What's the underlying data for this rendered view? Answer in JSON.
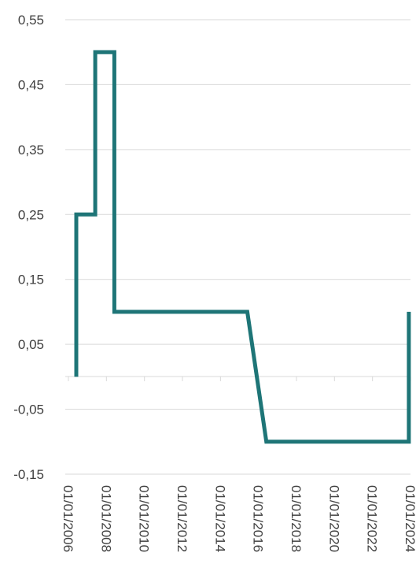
{
  "chart_data": {
    "type": "line",
    "step": true,
    "title": "",
    "xlabel": "",
    "ylabel": "",
    "ylim": [
      -0.15,
      0.55
    ],
    "xlim": [
      "2006-01-01",
      "2024-01-01"
    ],
    "grid": {
      "horizontal": true,
      "vertical": false
    },
    "legend": "none",
    "line_color": "#1E7577",
    "y_ticks": [
      {
        "value": 0.55,
        "label": "0,55"
      },
      {
        "value": 0.45,
        "label": "0,45"
      },
      {
        "value": 0.35,
        "label": "0,35"
      },
      {
        "value": 0.25,
        "label": "0,25"
      },
      {
        "value": 0.15,
        "label": "0,15"
      },
      {
        "value": 0.05,
        "label": "0,05"
      },
      {
        "value": -0.05,
        "label": "-0,05"
      },
      {
        "value": -0.15,
        "label": "-0,15"
      }
    ],
    "x_ticks": [
      {
        "value": "2006-01-01",
        "label": "01/01/2006"
      },
      {
        "value": "2008-01-01",
        "label": "01/01/2008"
      },
      {
        "value": "2010-01-01",
        "label": "01/01/2010"
      },
      {
        "value": "2012-01-01",
        "label": "01/01/2012"
      },
      {
        "value": "2014-01-01",
        "label": "01/01/2014"
      },
      {
        "value": "2016-01-01",
        "label": "01/01/2016"
      },
      {
        "value": "2018-01-01",
        "label": "01/01/2018"
      },
      {
        "value": "2020-01-01",
        "label": "01/01/2020"
      },
      {
        "value": "2022-01-01",
        "label": "01/01/2022"
      },
      {
        "value": "2024-01-01",
        "label": "01/01/2024"
      }
    ],
    "series": [
      {
        "points": [
          {
            "x": "2006-06-01",
            "y": 0.0
          },
          {
            "x": "2006-06-01",
            "y": 0.25
          },
          {
            "x": "2007-06-01",
            "y": 0.25
          },
          {
            "x": "2007-06-01",
            "y": 0.5
          },
          {
            "x": "2008-06-01",
            "y": 0.5
          },
          {
            "x": "2008-06-01",
            "y": 0.1
          },
          {
            "x": "2015-06-01",
            "y": 0.1
          },
          {
            "x": "2016-06-01",
            "y": -0.1
          },
          {
            "x": "2023-12-01",
            "y": -0.1
          },
          {
            "x": "2023-12-01",
            "y": 0.1
          }
        ]
      }
    ]
  }
}
